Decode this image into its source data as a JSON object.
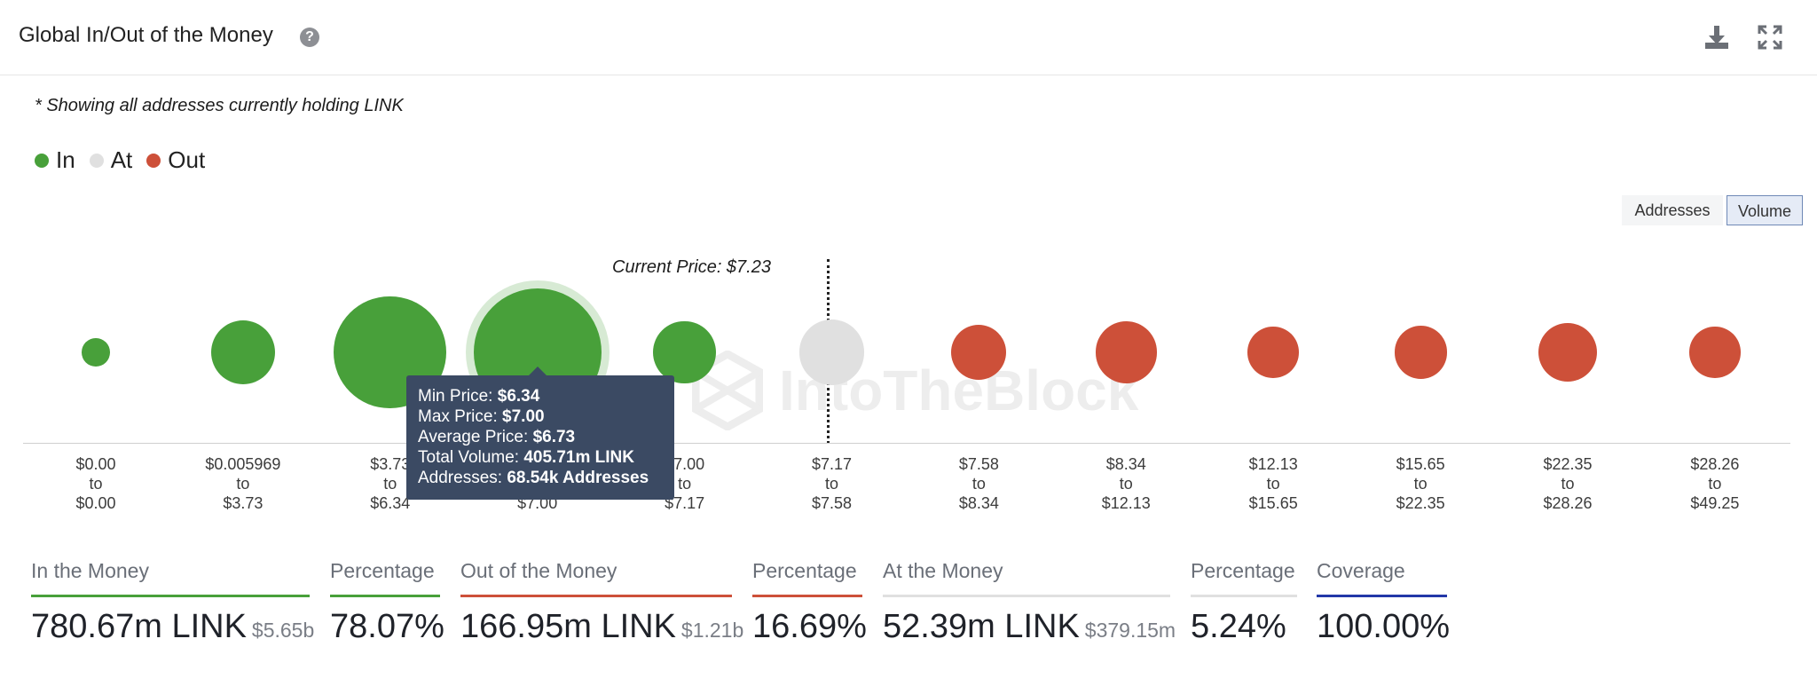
{
  "header": {
    "title": "Global In/Out of the Money",
    "help_icon": "question-circle-icon",
    "download_icon": "download-icon",
    "expand_icon": "expand-icon"
  },
  "note": "* Showing all addresses currently holding LINK",
  "legend": [
    {
      "label": "In",
      "color": "#48a03a"
    },
    {
      "label": "At",
      "color": "#e0e0e0"
    },
    {
      "label": "Out",
      "color": "#cd5039"
    }
  ],
  "toggles": {
    "addresses": "Addresses",
    "volume": "Volume",
    "selected": "Volume"
  },
  "current_price_label": "Current Price: $7.23",
  "watermark": "IntoTheBlock",
  "chart_data": {
    "type": "bubble",
    "bins": [
      {
        "from": "$0.00",
        "to": "$0.00",
        "status": "In",
        "relative_size": 0.22
      },
      {
        "from": "$0.005969",
        "to": "$3.73",
        "status": "In",
        "relative_size": 0.5
      },
      {
        "from": "$3.73",
        "to": "$6.34",
        "status": "In",
        "relative_size": 0.88
      },
      {
        "from": "$6.34",
        "to": "$7.00",
        "status": "In",
        "relative_size": 1.0,
        "highlighted": true
      },
      {
        "from": "$7.00",
        "to": "$7.17",
        "status": "In",
        "relative_size": 0.49
      },
      {
        "from": "$7.17",
        "to": "$7.58",
        "status": "At",
        "relative_size": 0.51
      },
      {
        "from": "$7.58",
        "to": "$8.34",
        "status": "Out",
        "relative_size": 0.43
      },
      {
        "from": "$8.34",
        "to": "$12.13",
        "status": "Out",
        "relative_size": 0.48
      },
      {
        "from": "$12.13",
        "to": "$15.65",
        "status": "Out",
        "relative_size": 0.4
      },
      {
        "from": "$15.65",
        "to": "$22.35",
        "status": "Out",
        "relative_size": 0.41
      },
      {
        "from": "$22.35",
        "to": "$28.26",
        "status": "Out",
        "relative_size": 0.46
      },
      {
        "from": "$28.26",
        "to": "$49.25",
        "status": "Out",
        "relative_size": 0.4
      }
    ],
    "current_price": "$7.23",
    "colors": {
      "In": "#48a03a",
      "At": "#e0e0e0",
      "Out": "#cd5039"
    }
  },
  "tooltip": {
    "min_price_label": "Min Price:",
    "min_price": "$6.34",
    "max_price_label": "Max Price:",
    "max_price": "$7.00",
    "avg_price_label": "Average Price:",
    "avg_price": "$6.73",
    "total_volume_label": "Total Volume:",
    "total_volume": "405.71m LINK",
    "addresses_label": "Addresses:",
    "addresses": "68.54k Addresses"
  },
  "summary": {
    "in_money": {
      "label": "In the Money",
      "value": "780.67m LINK",
      "sub": "$5.65b",
      "color": "#48a03a"
    },
    "in_pct": {
      "label": "Percentage",
      "value": "78.07%",
      "color": "#48a03a"
    },
    "out_money": {
      "label": "Out of the Money",
      "value": "166.95m LINK",
      "sub": "$1.21b",
      "color": "#cd5039"
    },
    "out_pct": {
      "label": "Percentage",
      "value": "16.69%",
      "color": "#cd5039"
    },
    "at_money": {
      "label": "At the Money",
      "value": "52.39m LINK",
      "sub": "$379.15m",
      "color": "#e0e0e0"
    },
    "at_pct": {
      "label": "Percentage",
      "value": "5.24%",
      "color": "#e0e0e0"
    },
    "coverage": {
      "label": "Coverage",
      "value": "100.00%",
      "color": "#2338a8"
    }
  }
}
